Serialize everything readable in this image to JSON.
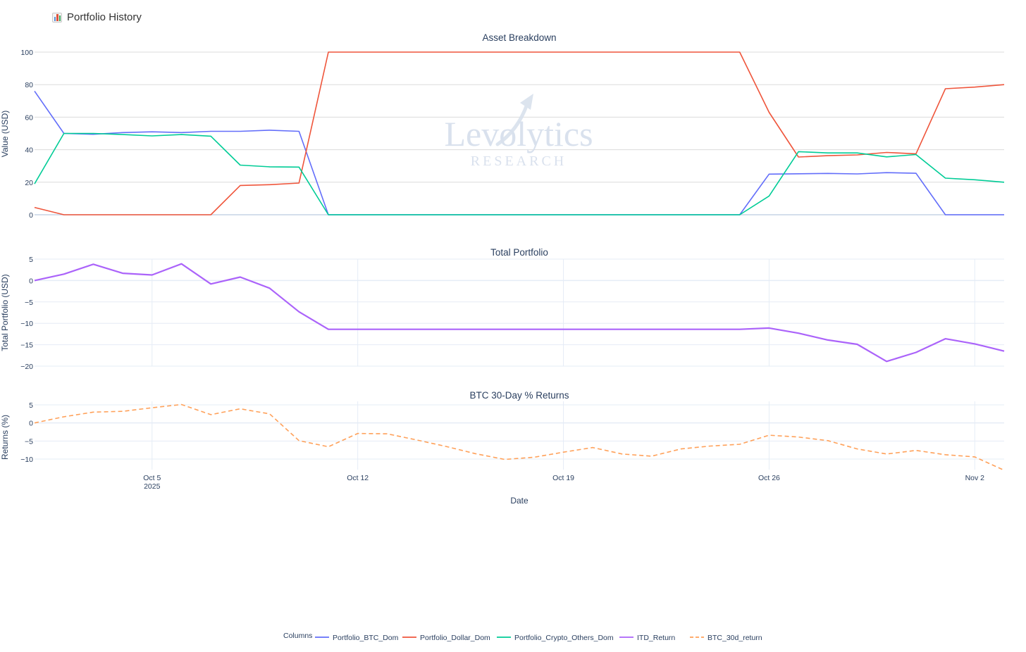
{
  "header": {
    "title": "Portfolio History",
    "icon": "bar-chart-icon"
  },
  "colors": {
    "btc_dom": "#636efa",
    "dollar_dom": "#ef553b",
    "crypto_others_dom": "#00cc96",
    "itd_return": "#ab63fa",
    "btc_30d_return": "#ffa15a",
    "grid": "#e5ecf6",
    "text": "#2a3f5f"
  },
  "watermark": {
    "line1": "Levolytics",
    "line2": "RESEARCH"
  },
  "x_axis": {
    "title": "Date",
    "ticks": [
      {
        "date": "2025-10-05",
        "label": "Oct 5",
        "sublabel": "2025"
      },
      {
        "date": "2025-10-12",
        "label": "Oct 12",
        "sublabel": ""
      },
      {
        "date": "2025-10-19",
        "label": "Oct 19",
        "sublabel": ""
      },
      {
        "date": "2025-10-26",
        "label": "Oct 26",
        "sublabel": ""
      },
      {
        "date": "2025-11-02",
        "label": "Nov 2",
        "sublabel": ""
      }
    ]
  },
  "legend": {
    "title": "Columns",
    "items": [
      {
        "label": "Portfolio_BTC_Dom",
        "color": "#636efa",
        "dash": "solid"
      },
      {
        "label": "Portfolio_Dollar_Dom",
        "color": "#ef553b",
        "dash": "solid"
      },
      {
        "label": "Portfolio_Crypto_Others_Dom",
        "color": "#00cc96",
        "dash": "solid"
      },
      {
        "label": "ITD_Return",
        "color": "#ab63fa",
        "dash": "solid"
      },
      {
        "label": "BTC_30d_return",
        "color": "#ffa15a",
        "dash": "dash"
      }
    ]
  },
  "chart_data": [
    {
      "type": "line",
      "title": "Asset Breakdown",
      "xlabel": "",
      "ylabel": "Value (USD)",
      "ylim": [
        0,
        100
      ],
      "yticks": [
        0,
        20,
        40,
        60,
        80,
        100
      ],
      "x": [
        "2025-10-01",
        "2025-10-02",
        "2025-10-03",
        "2025-10-04",
        "2025-10-05",
        "2025-10-06",
        "2025-10-07",
        "2025-10-08",
        "2025-10-09",
        "2025-10-10",
        "2025-10-11",
        "2025-10-12",
        "2025-10-13",
        "2025-10-14",
        "2025-10-15",
        "2025-10-16",
        "2025-10-17",
        "2025-10-18",
        "2025-10-19",
        "2025-10-20",
        "2025-10-21",
        "2025-10-22",
        "2025-10-23",
        "2025-10-24",
        "2025-10-25",
        "2025-10-26",
        "2025-10-27",
        "2025-10-28",
        "2025-10-29",
        "2025-10-30",
        "2025-10-31",
        "2025-11-01",
        "2025-11-02",
        "2025-11-03"
      ],
      "series": [
        {
          "name": "Portfolio_BTC_Dom",
          "color": "#636efa",
          "values": [
            76,
            50,
            49.5,
            50.5,
            51,
            50.5,
            51.3,
            51.3,
            52,
            51.3,
            0,
            0,
            0,
            0,
            0,
            0,
            0,
            0,
            0,
            0,
            0,
            0,
            0,
            0,
            0,
            25,
            25.2,
            25.4,
            25.1,
            25.9,
            25.5,
            0,
            0,
            0
          ]
        },
        {
          "name": "Portfolio_Dollar_Dom",
          "color": "#ef553b",
          "values": [
            4.5,
            0,
            0,
            0,
            0,
            0,
            0,
            18,
            18.5,
            19.5,
            100,
            100,
            100,
            100,
            100,
            100,
            100,
            100,
            100,
            100,
            100,
            100,
            100,
            100,
            100,
            63,
            35.5,
            36.3,
            36.8,
            38.3,
            37.5,
            77.5,
            78.5,
            80
          ]
        },
        {
          "name": "Portfolio_Crypto_Others_Dom",
          "color": "#00cc96",
          "values": [
            19,
            50,
            50,
            49.3,
            48.5,
            49.3,
            48.3,
            30.5,
            29.5,
            29.3,
            0,
            0,
            0,
            0,
            0,
            0,
            0,
            0,
            0,
            0,
            0,
            0,
            0,
            0,
            0,
            11.5,
            38.8,
            38,
            38,
            35.6,
            37,
            22.5,
            21.5,
            20
          ]
        }
      ]
    },
    {
      "type": "line",
      "title": "Total Portfolio",
      "xlabel": "",
      "ylabel": "Total Portfolio (USD)",
      "ylim": [
        -20,
        5
      ],
      "yticks": [
        -20,
        -15,
        -10,
        -5,
        0,
        5
      ],
      "x": [
        "2025-10-01",
        "2025-10-02",
        "2025-10-03",
        "2025-10-04",
        "2025-10-05",
        "2025-10-06",
        "2025-10-07",
        "2025-10-08",
        "2025-10-09",
        "2025-10-10",
        "2025-10-11",
        "2025-10-12",
        "2025-10-13",
        "2025-10-14",
        "2025-10-15",
        "2025-10-16",
        "2025-10-17",
        "2025-10-18",
        "2025-10-19",
        "2025-10-20",
        "2025-10-21",
        "2025-10-22",
        "2025-10-23",
        "2025-10-24",
        "2025-10-25",
        "2025-10-26",
        "2025-10-27",
        "2025-10-28",
        "2025-10-29",
        "2025-10-30",
        "2025-10-31",
        "2025-11-01",
        "2025-11-02",
        "2025-11-03"
      ],
      "series": [
        {
          "name": "ITD_Return",
          "color": "#ab63fa",
          "values": [
            0,
            1.5,
            3.8,
            1.7,
            1.3,
            3.9,
            -0.8,
            0.8,
            -1.8,
            -7.3,
            -11.4,
            -11.4,
            -11.4,
            -11.4,
            -11.4,
            -11.4,
            -11.4,
            -11.4,
            -11.4,
            -11.4,
            -11.4,
            -11.4,
            -11.4,
            -11.4,
            -11.4,
            -11.1,
            -12.3,
            -13.9,
            -14.9,
            -18.9,
            -16.8,
            -13.6,
            -14.8,
            -16.5
          ]
        }
      ]
    },
    {
      "type": "line",
      "title": "BTC 30-Day % Returns",
      "xlabel": "Date",
      "ylabel": "Returns (%)",
      "ylim": [
        -13,
        6
      ],
      "yticks": [
        -10,
        -5,
        0,
        5
      ],
      "x": [
        "2025-10-01",
        "2025-10-02",
        "2025-10-03",
        "2025-10-04",
        "2025-10-05",
        "2025-10-06",
        "2025-10-07",
        "2025-10-08",
        "2025-10-09",
        "2025-10-10",
        "2025-10-11",
        "2025-10-12",
        "2025-10-13",
        "2025-10-14",
        "2025-10-15",
        "2025-10-16",
        "2025-10-17",
        "2025-10-18",
        "2025-10-19",
        "2025-10-20",
        "2025-10-21",
        "2025-10-22",
        "2025-10-23",
        "2025-10-24",
        "2025-10-25",
        "2025-10-26",
        "2025-10-27",
        "2025-10-28",
        "2025-10-29",
        "2025-10-30",
        "2025-10-31",
        "2025-11-01",
        "2025-11-02",
        "2025-11-03"
      ],
      "series": [
        {
          "name": "BTC_30d_return",
          "color": "#ffa15a",
          "dash": "dash",
          "values": [
            0,
            1.7,
            3,
            3.2,
            4.2,
            5.1,
            2.3,
            3.9,
            2.5,
            -4.9,
            -6.6,
            -2.9,
            -3,
            -4.7,
            -6.5,
            -8.5,
            -10.1,
            -9.5,
            -8.1,
            -6.8,
            -8.6,
            -9.2,
            -7.2,
            -6.4,
            -5.9,
            -3.4,
            -3.9,
            -4.9,
            -7.2,
            -8.6,
            -7.6,
            -8.8,
            -9.4,
            -13.1
          ]
        }
      ]
    }
  ]
}
